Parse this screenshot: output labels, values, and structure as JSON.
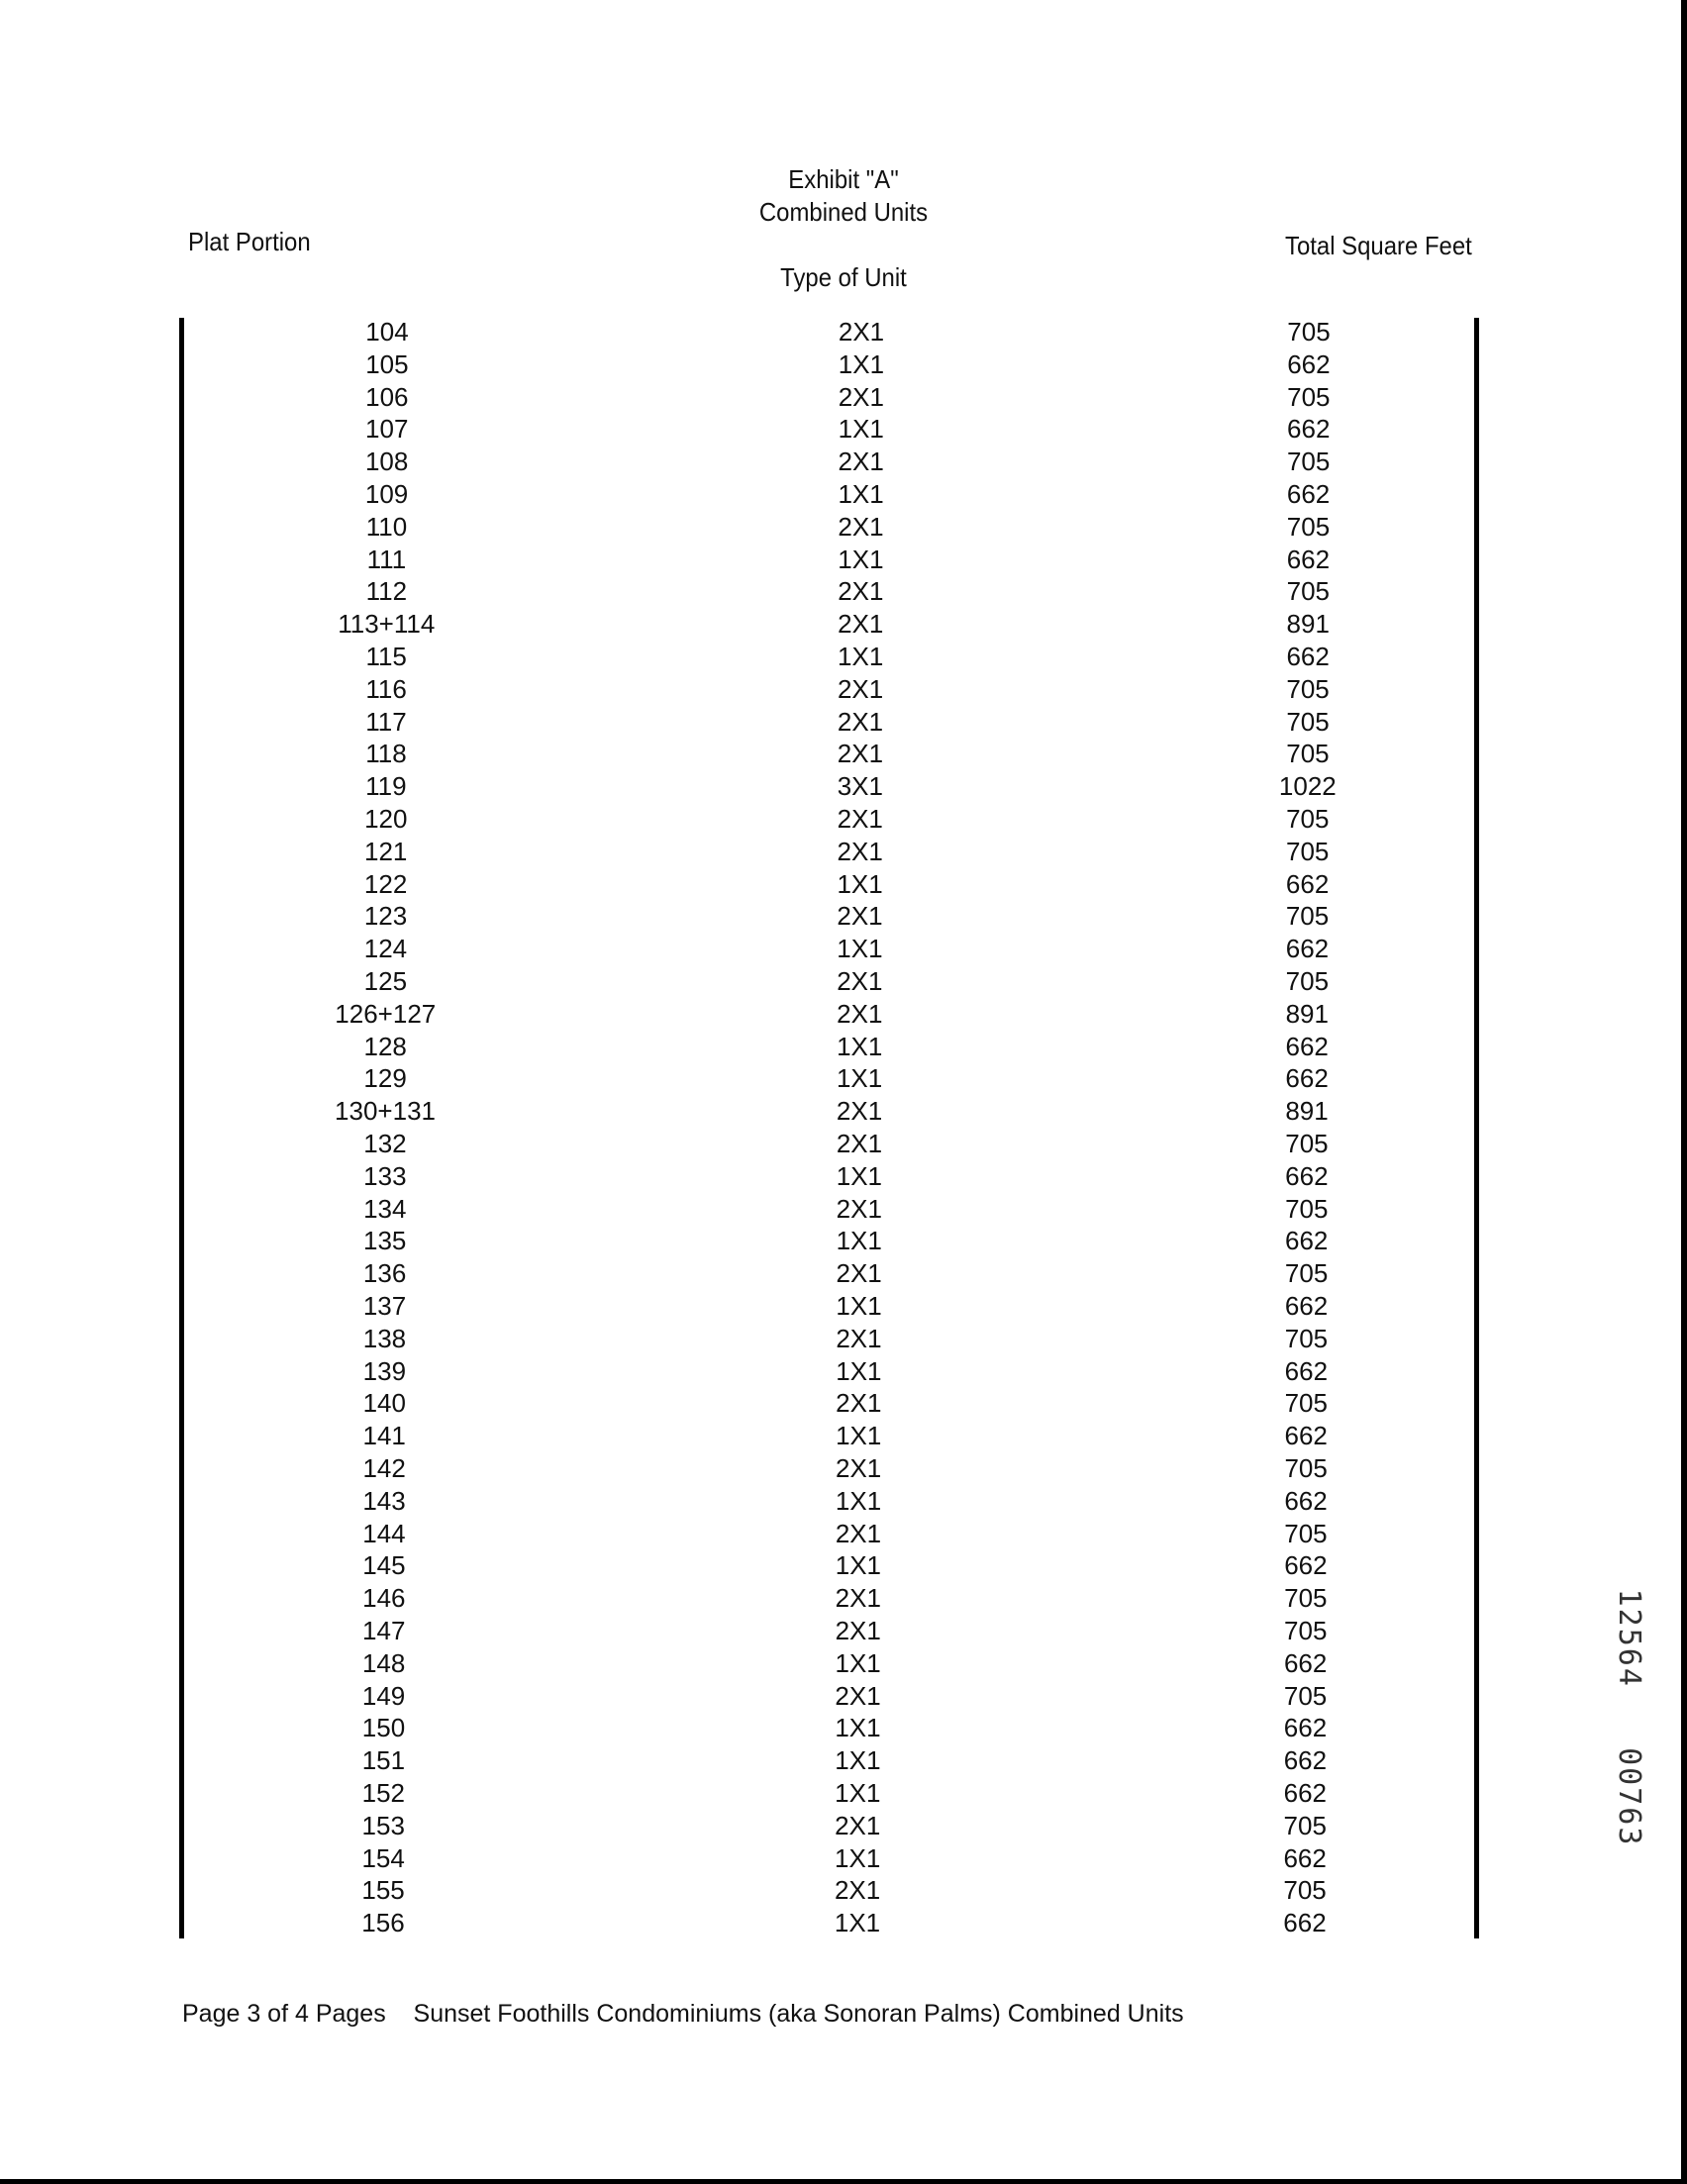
{
  "header": {
    "title": "Exhibit \"A\"",
    "subtitle": "Combined Units",
    "col_plat": "Plat Portion",
    "col_type": "Type of Unit",
    "col_sqft": "Total Square Feet"
  },
  "rows": [
    [
      "104",
      "2X1",
      "705"
    ],
    [
      "105",
      "1X1",
      "662"
    ],
    [
      "106",
      "2X1",
      "705"
    ],
    [
      "107",
      "1X1",
      "662"
    ],
    [
      "108",
      "2X1",
      "705"
    ],
    [
      "109",
      "1X1",
      "662"
    ],
    [
      "110",
      "2X1",
      "705"
    ],
    [
      "111",
      "1X1",
      "662"
    ],
    [
      "112",
      "2X1",
      "705"
    ],
    [
      "113+114",
      "2X1",
      "891"
    ],
    [
      "115",
      "1X1",
      "662"
    ],
    [
      "116",
      "2X1",
      "705"
    ],
    [
      "117",
      "2X1",
      "705"
    ],
    [
      "118",
      "2X1",
      "705"
    ],
    [
      "119",
      "3X1",
      "1022"
    ],
    [
      "120",
      "2X1",
      "705"
    ],
    [
      "121",
      "2X1",
      "705"
    ],
    [
      "122",
      "1X1",
      "662"
    ],
    [
      "123",
      "2X1",
      "705"
    ],
    [
      "124",
      "1X1",
      "662"
    ],
    [
      "125",
      "2X1",
      "705"
    ],
    [
      "126+127",
      "2X1",
      "891"
    ],
    [
      "128",
      "1X1",
      "662"
    ],
    [
      "129",
      "1X1",
      "662"
    ],
    [
      "130+131",
      "2X1",
      "891"
    ],
    [
      "132",
      "2X1",
      "705"
    ],
    [
      "133",
      "1X1",
      "662"
    ],
    [
      "134",
      "2X1",
      "705"
    ],
    [
      "135",
      "1X1",
      "662"
    ],
    [
      "136",
      "2X1",
      "705"
    ],
    [
      "137",
      "1X1",
      "662"
    ],
    [
      "138",
      "2X1",
      "705"
    ],
    [
      "139",
      "1X1",
      "662"
    ],
    [
      "140",
      "2X1",
      "705"
    ],
    [
      "141",
      "1X1",
      "662"
    ],
    [
      "142",
      "2X1",
      "705"
    ],
    [
      "143",
      "1X1",
      "662"
    ],
    [
      "144",
      "2X1",
      "705"
    ],
    [
      "145",
      "1X1",
      "662"
    ],
    [
      "146",
      "2X1",
      "705"
    ],
    [
      "147",
      "2X1",
      "705"
    ],
    [
      "148",
      "1X1",
      "662"
    ],
    [
      "149",
      "2X1",
      "705"
    ],
    [
      "150",
      "1X1",
      "662"
    ],
    [
      "151",
      "1X1",
      "662"
    ],
    [
      "152",
      "1X1",
      "662"
    ],
    [
      "153",
      "2X1",
      "705"
    ],
    [
      "154",
      "1X1",
      "662"
    ],
    [
      "155",
      "2X1",
      "705"
    ],
    [
      "156",
      "1X1",
      "662"
    ]
  ],
  "footer": {
    "page": "Page 3 of 4 Pages",
    "description": "Sunset Foothills Condominiums (aka Sonoran Palms) Combined Units"
  },
  "stamp": {
    "line1": "12564",
    "line2": "00763"
  }
}
